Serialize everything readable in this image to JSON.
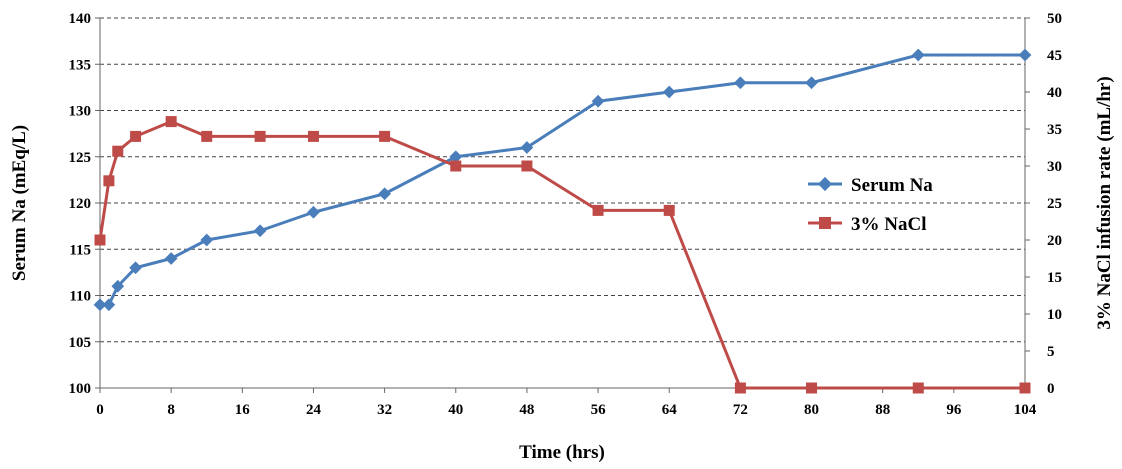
{
  "chart_data": {
    "type": "line",
    "title": "",
    "xlabel": "Time (hrs)",
    "ylabel": "Serum  Na (mEq/L)",
    "y2label": "3% NaCl infusion rate (mL/hr)",
    "xlim": [
      0,
      104
    ],
    "ylim": [
      100,
      140
    ],
    "y2lim": [
      0,
      50
    ],
    "xticks": [
      0,
      8,
      16,
      24,
      32,
      40,
      48,
      56,
      64,
      72,
      80,
      88,
      96,
      104
    ],
    "yticks": [
      100,
      105,
      110,
      115,
      120,
      125,
      130,
      135,
      140
    ],
    "y2ticks": [
      0,
      5,
      10,
      15,
      20,
      25,
      30,
      35,
      40,
      45,
      50
    ],
    "grid": "horizontal-dashed",
    "legend_position": "right",
    "series": [
      {
        "name": "Serum Na",
        "axis": "left",
        "color": "#4a7ebb",
        "marker": "diamond",
        "x": [
          0,
          1,
          2,
          4,
          8,
          12,
          18,
          24,
          32,
          40,
          48,
          56,
          64,
          72,
          80,
          92,
          104
        ],
        "y": [
          109,
          109,
          111,
          113,
          114,
          116,
          117,
          119,
          121,
          125,
          126,
          131,
          132,
          133,
          133,
          136,
          136
        ]
      },
      {
        "name": "3% NaCl",
        "axis": "right",
        "color": "#be4b48",
        "marker": "square",
        "x": [
          0,
          1,
          2,
          4,
          8,
          12,
          18,
          24,
          32,
          40,
          48,
          56,
          64,
          72,
          80,
          92,
          104
        ],
        "y": [
          20,
          28,
          32,
          34,
          36,
          34,
          34,
          34,
          34,
          30,
          30,
          24,
          24,
          0,
          0,
          0,
          0
        ]
      }
    ]
  }
}
